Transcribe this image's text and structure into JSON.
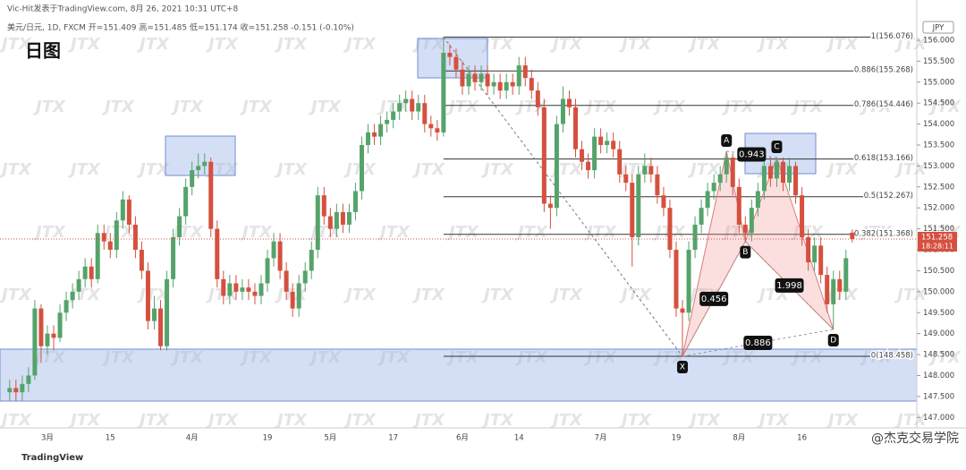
{
  "chart_data": {
    "type": "candlestick",
    "source_line": "Vic-Hit发表于TradingView.com, 8月 26, 2021 10:31 UTC+8",
    "symbol_line": "美元/日元, 1D, FXCM  开=151.409  高=151.485  低=151.174  收=151.258  -0.151 (-0.10%)",
    "title": "日图",
    "currency": "JPY",
    "watermark": "JTX",
    "platform": "TradingView",
    "credit": "@杰克交易学院",
    "up_color": "#55a36a",
    "down_color": "#d5503f",
    "categories": [
      null,
      null,
      null,
      null,
      null,
      null,
      "3月",
      null,
      null,
      null,
      null,
      null,
      null,
      null,
      null,
      null,
      "15",
      null,
      null,
      null,
      null,
      null,
      null,
      null,
      null,
      null,
      null,
      null,
      null,
      "4月",
      null,
      null,
      null,
      null,
      null,
      null,
      null,
      null,
      null,
      null,
      null,
      "19",
      null,
      null,
      null,
      null,
      null,
      null,
      null,
      null,
      null,
      "5月",
      null,
      null,
      null,
      null,
      null,
      null,
      null,
      null,
      null,
      "17",
      null,
      null,
      null,
      null,
      null,
      null,
      null,
      null,
      null,
      null,
      "6月",
      null,
      null,
      null,
      null,
      null,
      null,
      null,
      null,
      "14",
      null,
      null,
      null,
      null,
      null,
      null,
      null,
      null,
      null,
      null,
      null,
      null,
      "7月",
      null,
      null,
      null,
      null,
      null,
      null,
      null,
      null,
      null,
      null,
      null,
      "19",
      null,
      null,
      null,
      null,
      null,
      null,
      null,
      null,
      null,
      "8月",
      null,
      null,
      null,
      null,
      null,
      null,
      null,
      null,
      null,
      "16",
      null,
      null,
      null,
      null,
      null,
      null,
      null,
      null
    ],
    "open": [
      147.6,
      147.7,
      147.6,
      147.8,
      148.0,
      149.6,
      148.7,
      149.0,
      148.9,
      149.5,
      149.8,
      150.0,
      150.3,
      150.6,
      150.3,
      151.4,
      151.2,
      151.0,
      151.7,
      152.2,
      151.6,
      151.0,
      150.5,
      149.3,
      149.6,
      148.7,
      150.3,
      151.3,
      151.8,
      152.5,
      152.9,
      153.0,
      153.1,
      151.5,
      150.3,
      149.9,
      150.2,
      150.0,
      150.1,
      150.0,
      149.9,
      150.2,
      150.8,
      151.2,
      150.5,
      150.0,
      149.6,
      150.2,
      150.5,
      151.0,
      152.3,
      151.8,
      151.5,
      151.9,
      151.6,
      151.9,
      152.4,
      153.5,
      153.8,
      153.7,
      154.0,
      154.1,
      154.3,
      154.5,
      154.6,
      154.3,
      154.5,
      154.0,
      153.9,
      153.8,
      155.7,
      155.6,
      155.3,
      154.9,
      155.2,
      155.0,
      155.2,
      154.9,
      155.0,
      154.8,
      155.0,
      154.9,
      155.4,
      155.1,
      154.8,
      154.4,
      152.1,
      152.0,
      154.0,
      154.6,
      154.4,
      153.4,
      153.1,
      152.9,
      153.7,
      153.5,
      153.6,
      153.4,
      152.8,
      152.6,
      151.3,
      152.8,
      153.0,
      152.8,
      152.3,
      152.0,
      151.0,
      149.6,
      149.5,
      151.0,
      151.6,
      152.0,
      152.4,
      152.6,
      152.8,
      153.2,
      152.5,
      151.6,
      151.4,
      152.0,
      152.4,
      153.0,
      152.7,
      153.1,
      152.6,
      153.0,
      152.3,
      151.3,
      150.7,
      151.1,
      150.4,
      149.7,
      150.3,
      150.0,
      151.409
    ],
    "high": [
      147.9,
      147.9,
      148.0,
      148.2,
      149.8,
      149.7,
      149.2,
      149.2,
      149.7,
      150.0,
      150.2,
      150.5,
      150.8,
      150.8,
      151.6,
      151.6,
      151.4,
      151.9,
      152.4,
      152.3,
      151.8,
      151.2,
      150.7,
      149.9,
      149.8,
      150.5,
      151.5,
      152.0,
      152.7,
      153.1,
      153.3,
      153.3,
      153.2,
      151.7,
      150.5,
      150.4,
      150.4,
      150.3,
      150.3,
      150.2,
      150.4,
      151.0,
      151.4,
      151.4,
      150.7,
      150.2,
      150.4,
      150.7,
      151.2,
      152.5,
      152.5,
      152.0,
      152.1,
      152.1,
      152.1,
      152.6,
      153.7,
      154.0,
      154.0,
      154.2,
      154.3,
      154.5,
      154.7,
      154.8,
      154.8,
      154.7,
      154.7,
      154.2,
      154.1,
      156.076,
      155.9,
      155.8,
      155.5,
      155.4,
      155.4,
      155.4,
      155.4,
      155.2,
      155.2,
      155.2,
      155.2,
      155.6,
      155.6,
      155.3,
      155.0,
      154.6,
      152.3,
      154.2,
      154.9,
      154.8,
      154.6,
      153.6,
      153.3,
      153.9,
      153.9,
      153.8,
      153.8,
      153.6,
      153.0,
      152.8,
      153.0,
      153.3,
      153.2,
      153.0,
      152.5,
      152.2,
      151.2,
      149.8,
      151.2,
      151.8,
      152.2,
      152.6,
      152.8,
      153.0,
      153.35,
      153.3,
      152.7,
      151.8,
      152.2,
      152.6,
      153.2,
      153.2,
      153.2,
      153.2,
      153.2,
      153.1,
      152.5,
      151.5,
      151.3,
      151.3,
      150.6,
      150.5,
      150.5,
      151.0,
      151.485
    ],
    "low": [
      147.4,
      147.4,
      147.4,
      147.6,
      147.9,
      148.3,
      148.5,
      148.6,
      148.8,
      149.3,
      149.6,
      149.8,
      150.1,
      150.1,
      150.2,
      151.0,
      150.8,
      150.8,
      151.5,
      151.4,
      150.8,
      150.3,
      149.1,
      149.1,
      148.6,
      148.6,
      150.1,
      151.1,
      151.6,
      152.3,
      152.7,
      152.8,
      151.3,
      150.1,
      149.7,
      149.7,
      149.8,
      149.8,
      149.8,
      149.7,
      149.7,
      150.0,
      150.6,
      150.3,
      149.8,
      149.4,
      149.4,
      150.0,
      150.3,
      150.8,
      151.6,
      151.3,
      151.3,
      151.4,
      151.4,
      151.7,
      152.2,
      153.3,
      153.5,
      153.5,
      153.8,
      153.9,
      154.1,
      154.3,
      154.1,
      154.1,
      153.8,
      153.7,
      153.6,
      153.7,
      155.4,
      155.1,
      154.7,
      154.7,
      154.8,
      154.8,
      154.7,
      154.7,
      154.6,
      154.6,
      154.7,
      154.7,
      154.9,
      154.6,
      154.2,
      151.9,
      151.5,
      151.8,
      153.8,
      154.2,
      153.2,
      152.9,
      152.7,
      152.7,
      153.3,
      153.3,
      153.2,
      152.6,
      152.4,
      150.6,
      151.1,
      152.6,
      152.6,
      152.1,
      151.8,
      150.8,
      149.4,
      148.458,
      149.3,
      150.8,
      151.4,
      151.8,
      152.2,
      152.4,
      152.6,
      152.3,
      151.4,
      151.2,
      151.2,
      151.8,
      152.2,
      152.5,
      152.5,
      152.4,
      152.4,
      152.1,
      151.1,
      150.5,
      150.5,
      150.2,
      149.5,
      149.1,
      149.8,
      149.8,
      151.174
    ],
    "close": [
      147.7,
      147.6,
      147.8,
      148.0,
      149.6,
      148.7,
      149.0,
      148.9,
      149.5,
      149.8,
      150.0,
      150.3,
      150.6,
      150.3,
      151.4,
      151.2,
      151.0,
      151.7,
      152.2,
      151.6,
      151.0,
      150.5,
      149.3,
      149.6,
      148.7,
      150.3,
      151.3,
      151.8,
      152.5,
      152.9,
      153.0,
      153.1,
      151.5,
      150.3,
      149.9,
      150.2,
      150.0,
      150.1,
      150.0,
      149.9,
      150.2,
      150.8,
      151.2,
      150.5,
      150.0,
      149.6,
      150.2,
      150.5,
      151.0,
      152.3,
      151.8,
      151.5,
      151.9,
      151.6,
      151.9,
      152.4,
      153.5,
      153.8,
      153.7,
      154.0,
      154.1,
      154.3,
      154.5,
      154.6,
      154.3,
      154.5,
      154.0,
      153.9,
      153.8,
      155.7,
      155.6,
      155.3,
      154.9,
      155.2,
      155.0,
      155.2,
      154.9,
      155.0,
      154.8,
      155.0,
      154.9,
      155.4,
      155.1,
      154.8,
      154.4,
      152.1,
      152.0,
      154.0,
      154.6,
      154.4,
      153.4,
      153.1,
      152.9,
      153.7,
      153.5,
      153.6,
      153.4,
      152.8,
      152.6,
      151.3,
      152.8,
      153.0,
      152.8,
      152.3,
      152.0,
      151.0,
      149.6,
      149.5,
      151.0,
      151.6,
      152.0,
      152.4,
      152.6,
      152.8,
      153.2,
      152.5,
      151.6,
      151.4,
      152.0,
      152.4,
      153.0,
      152.7,
      153.1,
      152.6,
      153.0,
      152.3,
      151.3,
      150.7,
      151.1,
      150.4,
      149.7,
      150.3,
      150.0,
      150.8,
      151.258
    ],
    "last_price": {
      "value": 151.258,
      "label": "151.258"
    },
    "countdown": "18:28:11",
    "ylim": [
      146.75,
      156.96
    ],
    "yticks": [
      {
        "value": 147,
        "label": "147.000"
      },
      {
        "value": 147.5,
        "label": "147.500"
      },
      {
        "value": 148,
        "label": "148.000"
      },
      {
        "value": 148.5,
        "label": "148.500"
      },
      {
        "value": 149,
        "label": "149.000"
      },
      {
        "value": 149.5,
        "label": "149.500"
      },
      {
        "value": 150,
        "label": "150.000"
      },
      {
        "value": 150.5,
        "label": "150.500"
      },
      {
        "value": 151,
        "label": "151.000"
      },
      {
        "value": 151.5,
        "label": "151.500"
      },
      {
        "value": 152,
        "label": "152.000"
      },
      {
        "value": 152.5,
        "label": "152.500"
      },
      {
        "value": 153,
        "label": "153.000"
      },
      {
        "value": 153.5,
        "label": "153.500"
      },
      {
        "value": 154,
        "label": "154.000"
      },
      {
        "value": 154.5,
        "label": "154.500"
      },
      {
        "value": 155,
        "label": "155.000"
      },
      {
        "value": 155.5,
        "label": "155.500"
      },
      {
        "value": 156,
        "label": "156.000"
      }
    ],
    "fib_levels": [
      {
        "value": 156.076,
        "label": "1(156.076)"
      },
      {
        "value": 155.268,
        "label": "0.886(155.268)"
      },
      {
        "value": 154.446,
        "label": "0.786(154.446)"
      },
      {
        "value": 153.166,
        "label": "0.618(153.166)"
      },
      {
        "value": 152.267,
        "label": "0.5(152.267)"
      },
      {
        "value": 151.368,
        "label": "0.382(151.368)"
      },
      {
        "value": 148.458,
        "label": "0(148.458)"
      }
    ],
    "pattern_points": [
      {
        "name": "X",
        "index": 107,
        "value": 148.458
      },
      {
        "name": "A",
        "index": 114,
        "value": 153.35
      },
      {
        "name": "B",
        "index": 117,
        "value": 151.2
      },
      {
        "name": "C",
        "index": 122,
        "value": 153.2
      },
      {
        "name": "D",
        "index": 131,
        "value": 149.1
      }
    ],
    "pattern_ratios": [
      0.943,
      0.456,
      1.998,
      0.886
    ]
  }
}
